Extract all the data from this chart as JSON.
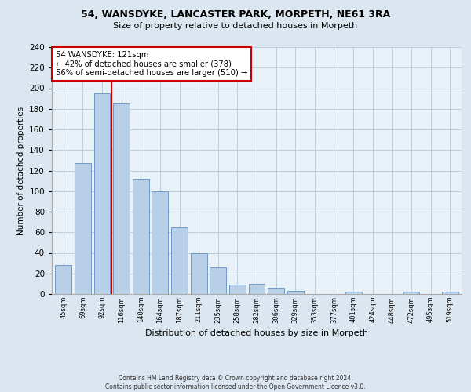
{
  "title": "54, WANSDYKE, LANCASTER PARK, MORPETH, NE61 3RA",
  "subtitle": "Size of property relative to detached houses in Morpeth",
  "xlabel": "Distribution of detached houses by size in Morpeth",
  "ylabel": "Number of detached properties",
  "bin_labels": [
    "45sqm",
    "69sqm",
    "92sqm",
    "116sqm",
    "140sqm",
    "164sqm",
    "187sqm",
    "211sqm",
    "235sqm",
    "258sqm",
    "282sqm",
    "306sqm",
    "329sqm",
    "353sqm",
    "377sqm",
    "401sqm",
    "424sqm",
    "448sqm",
    "472sqm",
    "495sqm",
    "519sqm"
  ],
  "bar_heights": [
    28,
    127,
    195,
    185,
    112,
    100,
    65,
    40,
    26,
    9,
    10,
    6,
    3,
    0,
    0,
    2,
    0,
    0,
    2,
    0,
    2
  ],
  "bar_color": "#b8cfe8",
  "bar_edge_color": "#6090c0",
  "vline_x_index": 3,
  "vline_color": "#cc0000",
  "annotation_title": "54 WANSDYKE: 121sqm",
  "annotation_line1": "← 42% of detached houses are smaller (378)",
  "annotation_line2": "56% of semi-detached houses are larger (510) →",
  "annotation_box_color": "#ffffff",
  "annotation_box_edge_color": "#cc0000",
  "ylim": [
    0,
    240
  ],
  "yticks": [
    0,
    20,
    40,
    60,
    80,
    100,
    120,
    140,
    160,
    180,
    200,
    220,
    240
  ],
  "footer1": "Contains HM Land Registry data © Crown copyright and database right 2024.",
  "footer2": "Contains public sector information licensed under the Open Government Licence v3.0.",
  "fig_background_color": "#dce6f0",
  "plot_background_color": "#e8f0f8"
}
